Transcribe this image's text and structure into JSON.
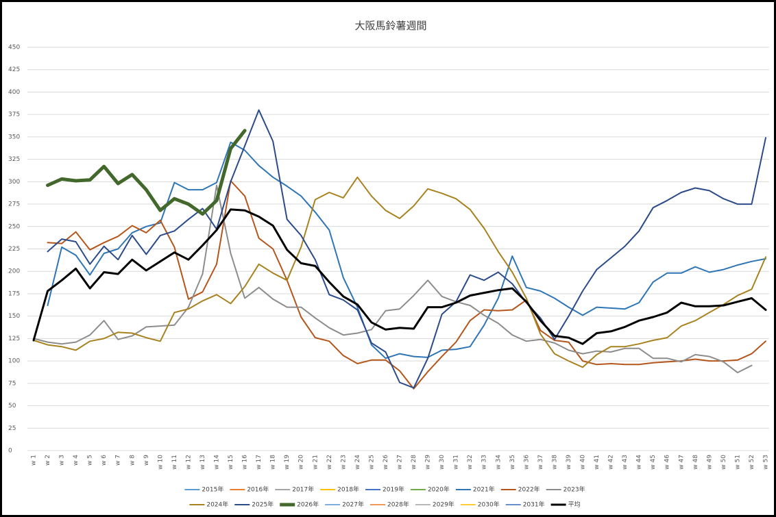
{
  "chart_data": {
    "type": "line",
    "title": "大阪馬鈴薯週間",
    "categories": [
      "w 1",
      "w 2",
      "w 3",
      "w 4",
      "w 5",
      "w 6",
      "w 7",
      "w 8",
      "w 9",
      "w 10",
      "w 11",
      "w 12",
      "w 13",
      "w 14",
      "w 15",
      "w 16",
      "w 17",
      "w 18",
      "w 19",
      "w 20",
      "w 21",
      "w 22",
      "w 23",
      "w 24",
      "w 25",
      "w 26",
      "w 27",
      "w 28",
      "w 29",
      "w 30",
      "w 31",
      "w 32",
      "w 33",
      "w 34",
      "w 35",
      "w 36",
      "w 37",
      "w 38",
      "w 39",
      "w 40",
      "w 41",
      "w 42",
      "w 43",
      "w 44",
      "w 45",
      "w 46",
      "w 47",
      "w 48",
      "w 49",
      "w 50",
      "w 51",
      "w 52",
      "w 53"
    ],
    "ylim": [
      0,
      450
    ],
    "yticks": [
      0,
      25,
      50,
      75,
      100,
      125,
      150,
      175,
      200,
      225,
      250,
      275,
      300,
      325,
      350,
      375,
      400,
      425,
      450
    ],
    "grid": true,
    "series": [
      {
        "name": "2015年",
        "color": "#5b9bd5",
        "linewidth": 2,
        "values": [
          null,
          null,
          null,
          null,
          null,
          null,
          null,
          null,
          null,
          null,
          null,
          null,
          null,
          null,
          null,
          null,
          null,
          null,
          null,
          null,
          null,
          null,
          null,
          null,
          null,
          null,
          null,
          null,
          null,
          null,
          null,
          null,
          null,
          null,
          null,
          null,
          null,
          null,
          null,
          null,
          null,
          null,
          null,
          null,
          null,
          null,
          null,
          null,
          null,
          null,
          null,
          null,
          null
        ]
      },
      {
        "name": "2016年",
        "color": "#ed7d31",
        "linewidth": 2,
        "values": [
          null,
          null,
          null,
          null,
          null,
          null,
          null,
          null,
          null,
          null,
          null,
          null,
          null,
          null,
          null,
          null,
          null,
          null,
          null,
          null,
          null,
          null,
          null,
          null,
          null,
          null,
          null,
          null,
          null,
          null,
          null,
          null,
          null,
          null,
          null,
          null,
          null,
          null,
          null,
          null,
          null,
          null,
          null,
          null,
          null,
          null,
          null,
          null,
          null,
          null,
          null,
          null,
          null
        ]
      },
      {
        "name": "2017年",
        "color": "#a5a5a5",
        "linewidth": 2,
        "values": [
          null,
          null,
          null,
          null,
          null,
          null,
          null,
          null,
          null,
          null,
          null,
          null,
          null,
          null,
          null,
          null,
          null,
          null,
          null,
          null,
          null,
          null,
          null,
          null,
          null,
          null,
          null,
          null,
          null,
          null,
          null,
          null,
          null,
          null,
          null,
          null,
          null,
          null,
          null,
          null,
          null,
          null,
          null,
          null,
          null,
          null,
          null,
          null,
          null,
          null,
          null,
          null,
          null
        ]
      },
      {
        "name": "2018年",
        "color": "#ffc000",
        "linewidth": 2,
        "values": [
          null,
          null,
          null,
          null,
          null,
          null,
          null,
          null,
          null,
          null,
          null,
          null,
          null,
          null,
          null,
          null,
          null,
          null,
          null,
          null,
          null,
          null,
          null,
          null,
          null,
          null,
          null,
          null,
          null,
          null,
          null,
          null,
          null,
          null,
          null,
          null,
          null,
          null,
          null,
          null,
          null,
          null,
          null,
          null,
          null,
          null,
          null,
          null,
          null,
          null,
          null,
          null,
          null
        ]
      },
      {
        "name": "2019年",
        "color": "#4472c4",
        "linewidth": 2,
        "values": [
          null,
          null,
          null,
          null,
          null,
          null,
          null,
          null,
          null,
          null,
          null,
          null,
          null,
          null,
          null,
          null,
          null,
          null,
          null,
          null,
          null,
          null,
          null,
          null,
          null,
          null,
          null,
          null,
          null,
          null,
          null,
          null,
          null,
          null,
          null,
          null,
          null,
          null,
          null,
          null,
          null,
          null,
          null,
          null,
          null,
          null,
          null,
          null,
          null,
          null,
          null,
          null,
          null
        ]
      },
      {
        "name": "2020年",
        "color": "#70ad47",
        "linewidth": 2,
        "values": [
          null,
          null,
          null,
          null,
          null,
          null,
          null,
          null,
          null,
          null,
          null,
          null,
          null,
          null,
          null,
          null,
          null,
          null,
          null,
          null,
          null,
          null,
          null,
          null,
          null,
          null,
          null,
          null,
          null,
          null,
          null,
          null,
          null,
          null,
          null,
          null,
          null,
          null,
          null,
          null,
          null,
          null,
          null,
          null,
          null,
          null,
          null,
          null,
          null,
          null,
          null,
          null,
          null
        ]
      },
      {
        "name": "2021年",
        "color": "#2e75b6",
        "linewidth": 2,
        "values": [
          null,
          162,
          227,
          218,
          196,
          220,
          225,
          243,
          250,
          254,
          299,
          291,
          291,
          299,
          344,
          335,
          318,
          305,
          295,
          284,
          266,
          246,
          193,
          160,
          118,
          103,
          108,
          105,
          104,
          112,
          113,
          116,
          140,
          170,
          217,
          182,
          178,
          170,
          160,
          151,
          160,
          159,
          158,
          165,
          188,
          198,
          198,
          205,
          199,
          202,
          207,
          211,
          214
        ]
      },
      {
        "name": "2022年",
        "color": "#b4561b",
        "linewidth": 2,
        "values": [
          null,
          232,
          231,
          244,
          224,
          232,
          239,
          251,
          243,
          257,
          227,
          169,
          177,
          208,
          301,
          284,
          237,
          225,
          190,
          149,
          126,
          122,
          106,
          97,
          101,
          101,
          89,
          69,
          88,
          105,
          121,
          145,
          157,
          156,
          157,
          168,
          134,
          123,
          121,
          100,
          96,
          97,
          96,
          96,
          98,
          99,
          100,
          102,
          100,
          100,
          101,
          108,
          122
        ]
      },
      {
        "name": "2023年",
        "color": "#8c8c8c",
        "linewidth": 2,
        "values": [
          125,
          121,
          119,
          121,
          129,
          145,
          124,
          128,
          138,
          139,
          140,
          160,
          197,
          296,
          220,
          170,
          182,
          169,
          160,
          160,
          148,
          137,
          129,
          131,
          135,
          156,
          158,
          173,
          190,
          172,
          166,
          162,
          151,
          142,
          129,
          122,
          124,
          120,
          112,
          108,
          111,
          110,
          114,
          114,
          103,
          103,
          99,
          107,
          105,
          99,
          87,
          95,
          null
        ]
      },
      {
        "name": "2024年",
        "color": "#a8821e",
        "linewidth": 2,
        "values": [
          123,
          118,
          116,
          112,
          122,
          125,
          132,
          131,
          126,
          122,
          154,
          158,
          167,
          174,
          164,
          183,
          208,
          198,
          190,
          227,
          280,
          288,
          282,
          305,
          284,
          268,
          259,
          273,
          292,
          287,
          281,
          269,
          248,
          222,
          199,
          170,
          130,
          108,
          100,
          93,
          107,
          116,
          116,
          119,
          123,
          126,
          139,
          145,
          154,
          163,
          173,
          180,
          216
        ]
      },
      {
        "name": "2025年",
        "color": "#2b4a8a",
        "linewidth": 2,
        "values": [
          null,
          222,
          236,
          233,
          208,
          228,
          213,
          240,
          219,
          240,
          245,
          258,
          270,
          247,
          300,
          340,
          380,
          345,
          258,
          240,
          213,
          174,
          168,
          157,
          120,
          110,
          76,
          70,
          103,
          152,
          166,
          196,
          190,
          199,
          186,
          165,
          148,
          124,
          150,
          178,
          202,
          215,
          228,
          245,
          271,
          279,
          288,
          293,
          290,
          281,
          275,
          275,
          349
        ]
      },
      {
        "name": "2026年",
        "color": "#43682b",
        "linewidth": 5,
        "values": [
          null,
          296,
          303,
          301,
          302,
          317,
          298,
          308,
          291,
          268,
          281,
          275,
          264,
          279,
          337,
          357,
          null,
          null,
          null,
          null,
          null,
          null,
          null,
          null,
          null,
          null,
          null,
          null,
          null,
          null,
          null,
          null,
          null,
          null,
          null,
          null,
          null,
          null,
          null,
          null,
          null,
          null,
          null,
          null,
          null,
          null,
          null,
          null,
          null,
          null,
          null,
          null,
          null
        ]
      },
      {
        "name": "2027年",
        "color": "#7cafdd",
        "linewidth": 2,
        "values": [
          null,
          null,
          null,
          null,
          null,
          null,
          null,
          null,
          null,
          null,
          null,
          null,
          null,
          null,
          null,
          null,
          null,
          null,
          null,
          null,
          null,
          null,
          null,
          null,
          null,
          null,
          null,
          null,
          null,
          null,
          null,
          null,
          null,
          null,
          null,
          null,
          null,
          null,
          null,
          null,
          null,
          null,
          null,
          null,
          null,
          null,
          null,
          null,
          null,
          null,
          null,
          null,
          null
        ]
      },
      {
        "name": "2028年",
        "color": "#f1975a",
        "linewidth": 2,
        "values": [
          null,
          null,
          null,
          null,
          null,
          null,
          null,
          null,
          null,
          null,
          null,
          null,
          null,
          null,
          null,
          null,
          null,
          null,
          null,
          null,
          null,
          null,
          null,
          null,
          null,
          null,
          null,
          null,
          null,
          null,
          null,
          null,
          null,
          null,
          null,
          null,
          null,
          null,
          null,
          null,
          null,
          null,
          null,
          null,
          null,
          null,
          null,
          null,
          null,
          null,
          null,
          null,
          null
        ]
      },
      {
        "name": "2029年",
        "color": "#b7b7b7",
        "linewidth": 2,
        "values": [
          null,
          null,
          null,
          null,
          null,
          null,
          null,
          null,
          null,
          null,
          null,
          null,
          null,
          null,
          null,
          null,
          null,
          null,
          null,
          null,
          null,
          null,
          null,
          null,
          null,
          null,
          null,
          null,
          null,
          null,
          null,
          null,
          null,
          null,
          null,
          null,
          null,
          null,
          null,
          null,
          null,
          null,
          null,
          null,
          null,
          null,
          null,
          null,
          null,
          null,
          null,
          null,
          null
        ]
      },
      {
        "name": "2030年",
        "color": "#ffcd33",
        "linewidth": 2,
        "values": [
          null,
          null,
          null,
          null,
          null,
          null,
          null,
          null,
          null,
          null,
          null,
          null,
          null,
          null,
          null,
          null,
          null,
          null,
          null,
          null,
          null,
          null,
          null,
          null,
          null,
          null,
          null,
          null,
          null,
          null,
          null,
          null,
          null,
          null,
          null,
          null,
          null,
          null,
          null,
          null,
          null,
          null,
          null,
          null,
          null,
          null,
          null,
          null,
          null,
          null,
          null,
          null,
          null
        ]
      },
      {
        "name": "2031年",
        "color": "#698ed0",
        "linewidth": 2,
        "values": [
          null,
          null,
          null,
          null,
          null,
          null,
          null,
          null,
          null,
          null,
          null,
          null,
          null,
          null,
          null,
          null,
          null,
          null,
          null,
          null,
          null,
          null,
          null,
          null,
          null,
          null,
          null,
          null,
          null,
          null,
          null,
          null,
          null,
          null,
          null,
          null,
          null,
          null,
          null,
          null,
          null,
          null,
          null,
          null,
          null,
          null,
          null,
          null,
          null,
          null,
          null,
          null,
          null
        ]
      },
      {
        "name": "平均",
        "color": "#000000",
        "linewidth": 3,
        "values": [
          123,
          178,
          190,
          203,
          181,
          199,
          197,
          213,
          201,
          211,
          221,
          213,
          229,
          246,
          269,
          268,
          261,
          251,
          224,
          209,
          206,
          188,
          172,
          163,
          143,
          135,
          137,
          136,
          160,
          160,
          165,
          173,
          176,
          179,
          181,
          166,
          145,
          128,
          126,
          119,
          131,
          133,
          138,
          145,
          149,
          154,
          165,
          161,
          161,
          162,
          166,
          170,
          157
        ]
      }
    ]
  }
}
